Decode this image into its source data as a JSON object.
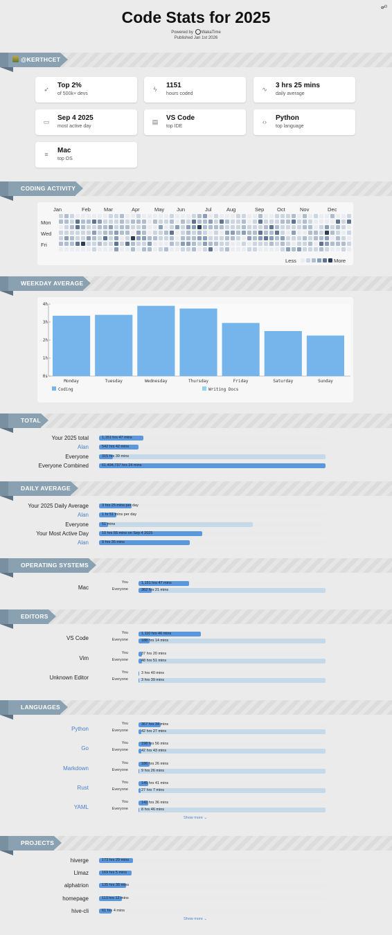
{
  "header": {
    "title": "Code Stats for 2025",
    "powered_by": "Powered by",
    "brand": "WakaTime",
    "published": "Published Jan 1st 2026"
  },
  "user": {
    "handle": "@KERTHCET"
  },
  "stats": [
    {
      "icon": "rocket-icon",
      "value": "Top 2%",
      "label": "of 500k+ devs"
    },
    {
      "icon": "bolt-icon",
      "value": "1151",
      "label": "hours coded"
    },
    {
      "icon": "pulse-icon",
      "value": "3 hrs 25 mins",
      "label": "daily average"
    },
    {
      "icon": "calendar-icon",
      "value": "Sep 4 2025",
      "label": "most active day"
    },
    {
      "icon": "document-icon",
      "value": "VS Code",
      "label": "top IDE"
    },
    {
      "icon": "code-icon",
      "value": "Python",
      "label": "top language"
    },
    {
      "icon": "server-icon",
      "value": "Mac",
      "label": "top OS"
    }
  ],
  "sections": {
    "coding_activity": "CODING ACTIVITY",
    "weekday_average": "WEEKDAY AVERAGE",
    "total": "TOTAL",
    "daily_average": "DAILY AVERAGE",
    "operating_systems": "OPERATING SYSTEMS",
    "editors": "EDITORS",
    "languages": "LANGUAGES",
    "projects": "PROJECTS"
  },
  "heatmap": {
    "months": [
      "Jan",
      "Feb",
      "Mar",
      "Apr",
      "May",
      "Jun",
      "Jul",
      "Aug",
      "Sep",
      "Oct",
      "Nov",
      "Dec"
    ],
    "days": [
      "Mon",
      "Wed",
      "Fri"
    ],
    "legend_less": "Less",
    "legend_more": "More",
    "colors": [
      "#e9ecf1",
      "#ccd6e2",
      "#aebdd0",
      "#8a9eb8",
      "#5e7492",
      "#2e3d55"
    ]
  },
  "chart_data": {
    "type": "bar",
    "categories": [
      "Monday",
      "Tuesday",
      "Wednesday",
      "Thursday",
      "Friday",
      "Saturday",
      "Sunday"
    ],
    "series": [
      {
        "name": "Coding",
        "values": [
          3.35,
          3.4,
          3.9,
          3.75,
          2.95,
          2.5,
          2.25
        ]
      },
      {
        "name": "Writing Docs",
        "values": [
          0,
          0,
          0,
          0,
          0,
          0,
          0
        ]
      }
    ],
    "yticks": [
      "0s",
      "1h",
      "2h",
      "3h",
      "4h"
    ],
    "ylim": [
      0,
      4
    ],
    "colors": {
      "Coding": "#76b4ec",
      "Writing Docs": "#8fd4ee"
    },
    "legend": "bottom"
  },
  "total": [
    {
      "label": "Your 2025 total",
      "value": "1,151 hrs 47 mins",
      "frac": 0.195,
      "blue": false,
      "track": "plain"
    },
    {
      "label": "Alan",
      "value": "542 hrs 42 mins",
      "frac": 0.175,
      "blue": true,
      "track": "plain"
    },
    {
      "label": "Everyone",
      "value": "315 hrs 39 mins",
      "frac": 0.06,
      "blue": false,
      "track": "alt"
    },
    {
      "label": "Everyone Combined",
      "value": "61,494,737 hrs 24 mins",
      "frac": 1.0,
      "blue": false,
      "track": "alt"
    }
  ],
  "daily": [
    {
      "label": "Your 2025 Daily Average",
      "value": "3 hrs 25 mins per day",
      "frac": 0.145,
      "blue": false,
      "track": "plain"
    },
    {
      "label": "Alan",
      "value": "1 hr 51 mins per day",
      "frac": 0.075,
      "blue": true,
      "track": "plain"
    },
    {
      "label": "Everyone",
      "value": "51 mins",
      "frac": 0.04,
      "blue": false,
      "track": "alt",
      "alt_frac": 0.68
    },
    {
      "label": "Your Most Active Day",
      "value": "10 hrs 55 mins on Sep 4 2025",
      "frac": 0.455,
      "blue": false,
      "track": "plain"
    },
    {
      "label": "Alan",
      "value": "9 hrs 35 mins",
      "frac": 0.4,
      "blue": true,
      "track": "plain"
    }
  ],
  "operating_systems": [
    {
      "name": "Mac",
      "you": "1,151 hrs 47 mins",
      "you_frac": 0.27,
      "everyone": "362 hrs 21 mins",
      "everyone_frac": 0.07
    }
  ],
  "editors": [
    {
      "name": "VS Code",
      "you": "1,110 hrs 46 mins",
      "you_frac": 0.335,
      "everyone": "188 hrs 14 mins",
      "everyone_frac": 0.06
    },
    {
      "name": "Vim",
      "you": "37 hrs 20 mins",
      "you_frac": 0.02,
      "everyone": "48 hrs 51 mins",
      "everyone_frac": 0.02
    },
    {
      "name": "Unknown Editor",
      "you": "3 hrs 40 mins",
      "you_frac": 0.005,
      "everyone": "3 hrs 39 mins",
      "everyone_frac": 0.005
    }
  ],
  "languages": [
    {
      "name": "Python",
      "you": "367 hrs 34 mins",
      "you_frac": 0.12,
      "everyone": "42 hrs 27 mins",
      "everyone_frac": 0.015
    },
    {
      "name": "Go",
      "you": "198 hrs 56 mins",
      "you_frac": 0.065,
      "everyone": "42 hrs 43 mins",
      "everyone_frac": 0.015
    },
    {
      "name": "Markdown",
      "you": "186 hrs 26 mins",
      "you_frac": 0.06,
      "everyone": "9 hrs 26 mins",
      "everyone_frac": 0.005
    },
    {
      "name": "Rust",
      "you": "145 hrs 41 mins",
      "you_frac": 0.05,
      "everyone": "27 hrs 7 mins",
      "everyone_frac": 0.01
    },
    {
      "name": "YAML",
      "you": "142 hrs 36 mins",
      "you_frac": 0.05,
      "everyone": "8 hrs 46 mins",
      "everyone_frac": 0.005
    }
  ],
  "projects": [
    {
      "name": "hiverge",
      "value": "173 hrs 29 mins",
      "frac": 0.15
    },
    {
      "name": "Llmaz",
      "value": "169 hrs 5 mins",
      "frac": 0.145
    },
    {
      "name": "alphatrion",
      "value": "135 hrs 38 mins",
      "frac": 0.12
    },
    {
      "name": "homepage",
      "value": "113 hrs 12 mins",
      "frac": 0.1
    },
    {
      "name": "hive-cli",
      "value": "61 hrs 4 mins",
      "frac": 0.055
    }
  ],
  "labels": {
    "you": "You",
    "everyone": "Everyone",
    "show_more": "Show more ⌄"
  }
}
